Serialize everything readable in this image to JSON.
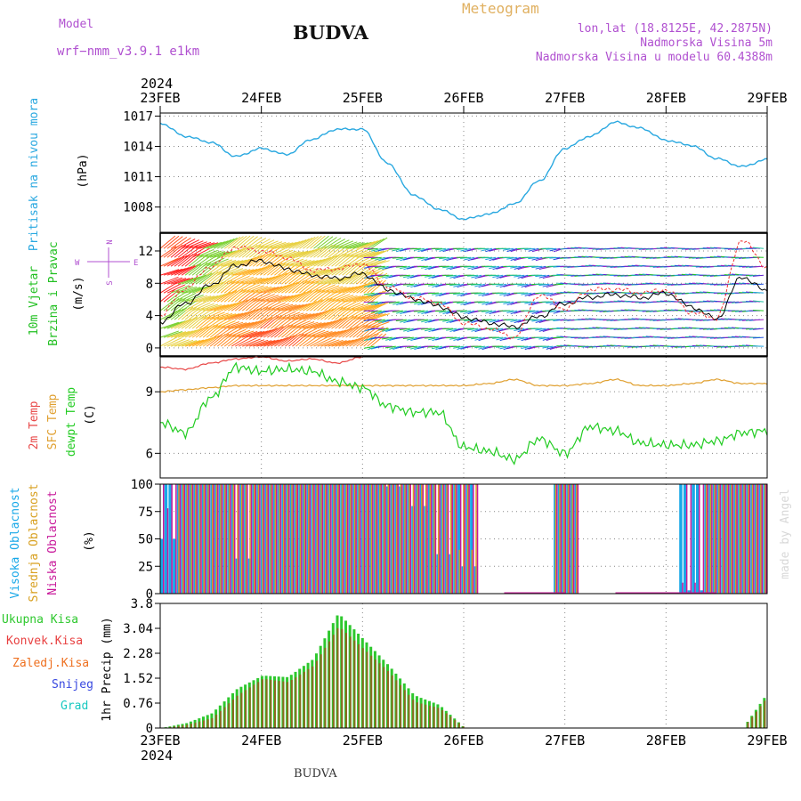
{
  "header": {
    "model_label": "Model",
    "model_name": "wrf−nmm_v3.9.1  e1km",
    "station": "BUDVA",
    "product": "Meteogram",
    "coords": "lon,lat (18.8125E, 42.2875N)",
    "elevation": "Nadmorska Visina 5m",
    "model_elevation": "Nadmorska Visina u modelu 60.4388m"
  },
  "footer": {
    "station": "BUDVA",
    "credit": "made by Angel"
  },
  "colors": {
    "pressure": "#29a8e0",
    "wind_label": "#22c022",
    "temp2m": "#e84848",
    "sfc": "#e0a030",
    "dew": "#22cc22",
    "high_cloud": "#18a8e8",
    "mid_cloud": "#d8a020",
    "low_cloud": "#c8189a",
    "total_precip": "#2ec82e",
    "conv_precip": "#e84040",
    "frz_precip": "#ee7020",
    "snow": "#3848e0",
    "hail": "#18c8c0",
    "header_purple": "#b050d0",
    "header_orange": "#e0b060"
  },
  "x_axis": {
    "year_top": "2024",
    "year_bottom": "2024",
    "ticks": [
      "23FEB",
      "24FEB",
      "25FEB",
      "26FEB",
      "27FEB",
      "28FEB",
      "29FEB"
    ]
  },
  "chart_data": [
    {
      "id": "pressure",
      "type": "line",
      "ylabel": [
        "Pritisak na nivou mora",
        "(hPa)"
      ],
      "ylim": [
        1005.5,
        1017.3
      ],
      "yticks": [
        "1017",
        "1014",
        "1011",
        "1008"
      ],
      "ytick_values": [
        1017,
        1014,
        1011,
        1008
      ],
      "x": [
        0,
        0.25,
        0.5,
        0.75,
        1,
        1.25,
        1.5,
        1.75,
        2,
        2.25,
        2.5,
        2.75,
        3,
        3.25,
        3.5,
        3.75,
        4,
        4.25,
        4.5,
        4.75,
        5,
        5.25,
        5.5,
        5.75,
        6
      ],
      "series": [
        {
          "values": [
            1016.3,
            1015.0,
            1014.4,
            1013.0,
            1013.8,
            1013.2,
            1014.7,
            1015.7,
            1015.7,
            1012.3,
            1009.2,
            1007.8,
            1006.8,
            1007.3,
            1008.3,
            1010.6,
            1013.8,
            1015.0,
            1016.4,
            1015.8,
            1014.6,
            1014.1,
            1012.8,
            1012.0,
            1012.7
          ]
        }
      ]
    },
    {
      "id": "wind",
      "type": "line",
      "ylabel": [
        "10m Vjetar",
        "Brzina i Pravac",
        "(m/s)"
      ],
      "compass": {
        "n": "N",
        "s": "S",
        "w": "W",
        "e": "E"
      },
      "ylim": [
        -1,
        14.2
      ],
      "yticks": [
        "12",
        "8",
        "4",
        "0"
      ],
      "ytick_values": [
        12,
        8,
        4,
        0
      ],
      "x": [
        0,
        0.25,
        0.5,
        0.75,
        1,
        1.25,
        1.5,
        1.75,
        2,
        2.25,
        2.5,
        2.75,
        3,
        3.25,
        3.5,
        3.75,
        4,
        4.25,
        4.5,
        4.75,
        5,
        5.25,
        5.5,
        5.75,
        6
      ],
      "series": [
        {
          "name": "speed",
          "values": [
            3.2,
            5.5,
            7.8,
            10.2,
            10.8,
            9.8,
            9.0,
            8.6,
            9.2,
            7.2,
            6.1,
            5.2,
            3.8,
            3.1,
            2.6,
            3.9,
            5.5,
            6.3,
            6.6,
            6.2,
            6.8,
            5.1,
            3.6,
            8.8,
            7.0
          ]
        },
        {
          "name": "gust",
          "values": [
            4.0,
            7.4,
            10.1,
            12.5,
            12.0,
            11.2,
            9.6,
            9.8,
            10.4,
            7.6,
            6.2,
            5.6,
            3.1,
            2.4,
            1.3,
            6.6,
            4.8,
            7.2,
            7.3,
            6.8,
            7.2,
            4.4,
            3.7,
            13.4,
            10.0
          ]
        }
      ]
    },
    {
      "id": "temperature",
      "type": "line",
      "ylabel": [
        "2m Temp",
        "SFC Temp",
        "dewpt Temp",
        "(C)"
      ],
      "ylim": [
        4.8,
        10.7
      ],
      "yticks": [
        "9",
        "6"
      ],
      "ytick_values": [
        9,
        6
      ],
      "x": [
        0,
        0.25,
        0.5,
        0.75,
        1,
        1.25,
        1.5,
        1.75,
        2,
        2.25,
        2.5,
        2.75,
        3,
        3.25,
        3.5,
        3.75,
        4,
        4.25,
        4.5,
        4.75,
        5,
        5.25,
        5.5,
        5.75,
        6
      ],
      "series": [
        {
          "name": "2m Temp",
          "values": [
            10.2,
            10.1,
            10.4,
            10.6,
            10.7,
            10.5,
            10.6,
            10.4,
            10.7,
            null,
            null,
            null,
            null,
            null,
            null,
            null,
            null,
            null,
            null,
            null,
            null,
            null,
            null,
            null,
            null
          ]
        },
        {
          "name": "SFC Temp",
          "values": [
            9.0,
            9.1,
            9.2,
            9.3,
            9.3,
            9.3,
            9.3,
            9.3,
            9.3,
            9.3,
            9.3,
            9.3,
            9.3,
            9.4,
            9.6,
            9.3,
            9.3,
            9.4,
            9.6,
            9.3,
            9.3,
            9.4,
            9.6,
            9.4,
            9.4
          ]
        },
        {
          "name": "dewpt Temp",
          "values": [
            7.5,
            7.0,
            8.7,
            10.2,
            10.0,
            10.1,
            10.0,
            9.5,
            9.2,
            8.3,
            8.0,
            8.0,
            6.3,
            6.1,
            5.7,
            6.7,
            6.0,
            7.3,
            7.1,
            6.5,
            6.4,
            6.4,
            6.6,
            7.0,
            7.1
          ]
        }
      ]
    },
    {
      "id": "cloud",
      "type": "bar",
      "ylabel": [
        "Visoka Oblacnost",
        "Srednja Oblacnost",
        "Niska Oblacnost",
        "(%)"
      ],
      "ylim": [
        0,
        100
      ],
      "yticks": [
        "100",
        "75",
        "50",
        "25",
        "0"
      ],
      "ytick_values": [
        100,
        75,
        50,
        25,
        0
      ],
      "x": [
        0,
        0.25,
        0.5,
        0.75,
        1,
        1.25,
        1.5,
        1.75,
        2,
        2.25,
        2.5,
        2.75,
        3,
        3.25,
        3.5,
        3.75,
        4,
        4.25,
        4.5,
        4.75,
        5,
        5.25,
        5.5,
        5.75,
        6
      ],
      "series": [
        {
          "name": "Visoka Oblacnost",
          "values": [
            50,
            100,
            100,
            32,
            100,
            100,
            100,
            100,
            100,
            98,
            80,
            36,
            25,
            0,
            0,
            0,
            100,
            0,
            0,
            0,
            0,
            3,
            100,
            100,
            100
          ]
        },
        {
          "name": "Srednja Oblacnost",
          "values": [
            0,
            100,
            100,
            100,
            100,
            100,
            100,
            100,
            100,
            100,
            100,
            100,
            40,
            0,
            0,
            0,
            100,
            0,
            0,
            0,
            0,
            0,
            100,
            100,
            100
          ]
        },
        {
          "name": "Niska Oblacnost",
          "values": [
            78,
            100,
            100,
            100,
            100,
            100,
            100,
            100,
            100,
            100,
            100,
            100,
            100,
            0,
            0,
            0,
            100,
            0,
            0,
            0,
            0,
            10,
            100,
            100,
            100
          ]
        }
      ]
    },
    {
      "id": "precip",
      "type": "bar",
      "ylabel": [
        "1hr Precip (mm)"
      ],
      "legend": [
        "Ukupna Kisa",
        "Konvek.Kisa",
        "Zaledj.Kisa",
        "Snijeg",
        "Grad"
      ],
      "ylim": [
        0,
        3.8
      ],
      "yticks": [
        "3.8",
        "3.04",
        "2.28",
        "1.52",
        "0.76",
        "0"
      ],
      "ytick_values": [
        3.8,
        3.04,
        2.28,
        1.52,
        0.76,
        0
      ],
      "x": [
        0,
        0.25,
        0.5,
        0.75,
        1,
        1.25,
        1.5,
        1.75,
        2,
        2.25,
        2.5,
        2.75,
        3,
        3.25,
        3.5,
        3.75,
        4,
        4.25,
        4.5,
        4.75,
        5,
        5.25,
        5.5,
        5.75,
        6
      ],
      "series": [
        {
          "name": "Ukupna Kisa",
          "values": [
            0,
            0.15,
            0.45,
            1.2,
            1.6,
            1.55,
            2.1,
            3.5,
            2.7,
            1.9,
            1.0,
            0.7,
            0,
            0,
            0,
            0,
            0,
            0,
            0,
            0,
            0,
            0,
            0,
            0,
            1.1
          ]
        },
        {
          "name": "Konvek.Kisa",
          "values": [
            0,
            0.1,
            0.3,
            1.0,
            1.5,
            1.4,
            1.9,
            3.1,
            2.4,
            1.7,
            0.8,
            0.6,
            0,
            0,
            0,
            0,
            0,
            0,
            0,
            0,
            0,
            0,
            0,
            0,
            1.0
          ]
        }
      ]
    }
  ]
}
